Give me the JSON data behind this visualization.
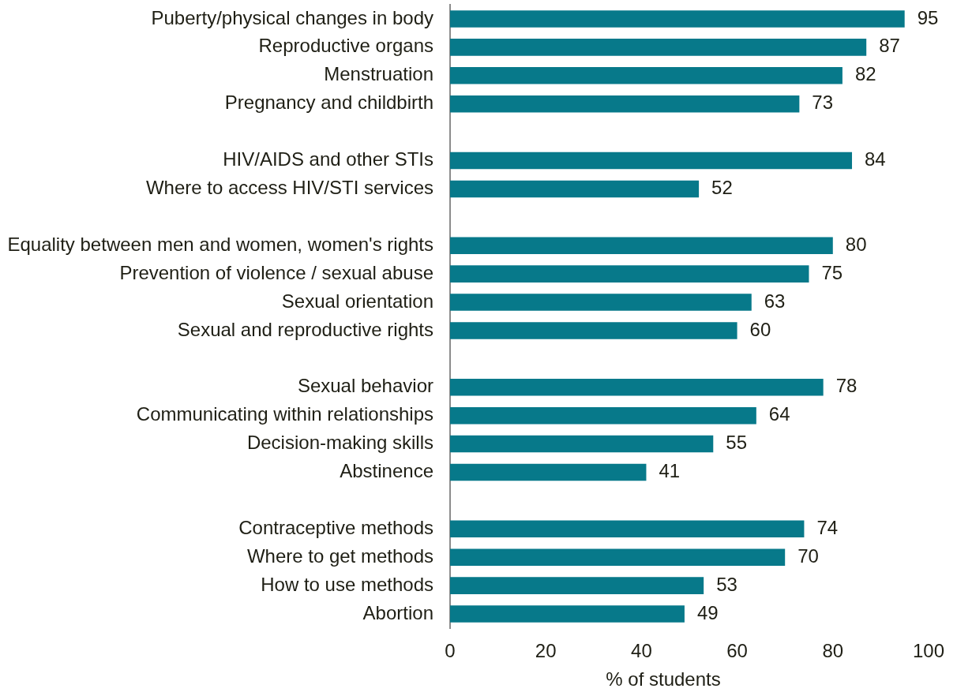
{
  "chart_data": {
    "type": "bar",
    "orientation": "horizontal",
    "categories": [
      "Puberty/physical changes in body",
      "Reproductive organs",
      "Menstruation",
      "Pregnancy and childbirth",
      null,
      "HIV/AIDS and other STIs",
      "Where to access HIV/STI services",
      null,
      "Equality between men and women, women's rights",
      "Prevention of violence / sexual abuse",
      "Sexual orientation",
      "Sexual and reproductive rights",
      null,
      "Sexual behavior",
      "Communicating within relationships",
      "Decision-making skills",
      "Abstinence",
      null,
      "Contraceptive methods",
      "Where to get methods",
      "How to use methods",
      "Abortion"
    ],
    "values": [
      95,
      87,
      82,
      73,
      null,
      84,
      52,
      null,
      80,
      75,
      63,
      60,
      null,
      78,
      64,
      55,
      41,
      null,
      74,
      70,
      53,
      49
    ],
    "color": "#07798a",
    "xlim": [
      0,
      100
    ],
    "xticks": [
      0,
      20,
      40,
      60,
      80,
      100
    ],
    "xlabel": "% of students",
    "data_labels": true
  }
}
